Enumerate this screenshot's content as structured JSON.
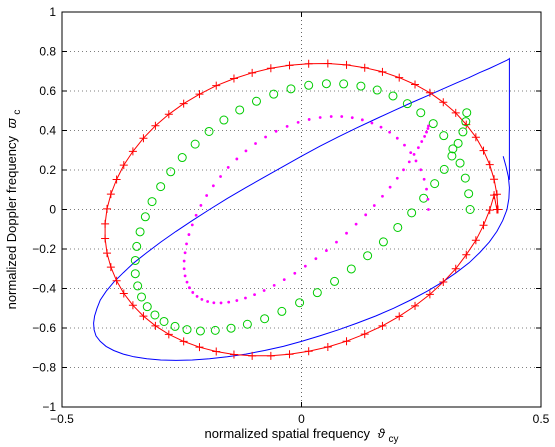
{
  "chart_data": {
    "type": "line",
    "title": "",
    "xlabel": "normalized spatial frequency",
    "xlabel_symbol": "ϑ",
    "xlabel_sub": "cy",
    "ylabel": "normalized Doppler frequency",
    "ylabel_symbol": "ϖ",
    "ylabel_sub": "c",
    "xlim": [
      -0.5,
      0.5
    ],
    "ylim": [
      -1,
      1
    ],
    "grid": true,
    "xticks": [
      -0.5,
      0,
      0.5
    ],
    "xtick_labels": [
      "−0.5",
      "0",
      "0.5"
    ],
    "yticks": [
      -1,
      -0.8,
      -0.6,
      -0.4,
      -0.2,
      0,
      0.2,
      0.4,
      0.6,
      0.8,
      1
    ],
    "ytick_labels": [
      "−1",
      "−0.8",
      "−0.6",
      "−0.4",
      "−0.2",
      "0",
      "0.2",
      "0.4",
      "0.6",
      "0.8",
      "1"
    ],
    "series": [
      {
        "color": "#0000ff",
        "marker": "none",
        "style": "solid",
        "x": [
          0.421,
          0.427,
          0.432,
          0.434,
          0.433,
          0.429,
          0.42,
          0.408,
          0.392,
          0.372,
          0.35,
          0.323,
          0.294,
          0.262,
          0.228,
          0.192,
          0.155,
          0.116,
          0.077,
          0.038,
          0.0,
          -0.038,
          -0.077,
          -0.116,
          -0.155,
          -0.192,
          -0.228,
          -0.262,
          -0.294,
          -0.323,
          -0.35,
          -0.372,
          -0.392,
          -0.408,
          -0.42,
          -0.429,
          -0.433,
          -0.434,
          -0.432,
          -0.427,
          -0.42,
          -0.408,
          -0.392,
          -0.372,
          -0.35,
          -0.323,
          -0.294,
          -0.262,
          -0.228,
          -0.192,
          -0.155,
          -0.116,
          -0.077,
          -0.038,
          0.0,
          0.038,
          0.077,
          0.116,
          0.155,
          0.192,
          0.228,
          0.262,
          0.294,
          0.323,
          0.35,
          0.372,
          0.392,
          0.408,
          0.42,
          0.429,
          0.433,
          0.434,
          0.434
        ],
        "y": [
          0.27,
          0.218,
          0.165,
          0.111,
          0.056,
          0.0,
          -0.056,
          -0.111,
          -0.165,
          -0.218,
          -0.27,
          -0.32,
          -0.368,
          -0.414,
          -0.458,
          -0.5,
          -0.539,
          -0.575,
          -0.609,
          -0.64,
          -0.668,
          -0.693,
          -0.714,
          -0.732,
          -0.746,
          -0.756,
          -0.762,
          -0.764,
          -0.762,
          -0.756,
          -0.746,
          -0.732,
          -0.714,
          -0.693,
          -0.668,
          -0.64,
          -0.609,
          -0.575,
          -0.539,
          -0.5,
          -0.458,
          -0.414,
          -0.368,
          -0.32,
          -0.27,
          -0.218,
          -0.165,
          -0.111,
          -0.056,
          0.0,
          0.056,
          0.111,
          0.165,
          0.218,
          0.27,
          0.32,
          0.368,
          0.414,
          0.458,
          0.5,
          0.539,
          0.575,
          0.609,
          0.64,
          0.668,
          0.693,
          0.714,
          0.732,
          0.746,
          0.756,
          0.762,
          0.764,
          0.15
        ]
      },
      {
        "color": "#ff0000",
        "marker": "plus",
        "style": "solid",
        "x": [
          0.41,
          0.408,
          0.402,
          0.393,
          0.38,
          0.364,
          0.344,
          0.322,
          0.296,
          0.268,
          0.237,
          0.204,
          0.169,
          0.132,
          0.094,
          0.055,
          0.015,
          -0.025,
          -0.064,
          -0.103,
          -0.141,
          -0.178,
          -0.213,
          -0.246,
          -0.277,
          -0.305,
          -0.33,
          -0.352,
          -0.371,
          -0.386,
          -0.398,
          -0.406,
          -0.41,
          -0.41,
          -0.406,
          -0.398,
          -0.386,
          -0.371,
          -0.352,
          -0.33,
          -0.305,
          -0.277,
          -0.246,
          -0.213,
          -0.178,
          -0.141,
          -0.103,
          -0.064,
          -0.025,
          0.015,
          0.055,
          0.094,
          0.132,
          0.169,
          0.204,
          0.237,
          0.268,
          0.296,
          0.322,
          0.344,
          0.364,
          0.38,
          0.393,
          0.402,
          0.408,
          0.41
        ],
        "y": [
          0.0,
          0.077,
          0.153,
          0.227,
          0.298,
          0.366,
          0.43,
          0.489,
          0.543,
          0.591,
          0.633,
          0.668,
          0.697,
          0.718,
          0.732,
          0.739,
          0.738,
          0.73,
          0.715,
          0.692,
          0.663,
          0.627,
          0.584,
          0.536,
          0.482,
          0.424,
          0.361,
          0.294,
          0.225,
          0.152,
          0.078,
          0.003,
          -0.073,
          -0.147,
          -0.221,
          -0.292,
          -0.361,
          -0.425,
          -0.485,
          -0.54,
          -0.589,
          -0.632,
          -0.668,
          -0.697,
          -0.719,
          -0.734,
          -0.741,
          -0.741,
          -0.733,
          -0.718,
          -0.696,
          -0.667,
          -0.631,
          -0.589,
          -0.541,
          -0.488,
          -0.43,
          -0.367,
          -0.3,
          -0.229,
          -0.156,
          -0.08,
          -0.003,
          0.073,
          0.0,
          0.0
        ]
      },
      {
        "color": "#00cc00",
        "marker": "circle",
        "style": "none",
        "x": [
          0.352,
          0.349,
          0.342,
          0.331,
          0.316,
          0.297,
          0.275,
          0.249,
          0.221,
          0.191,
          0.158,
          0.124,
          0.088,
          0.052,
          0.015,
          -0.022,
          -0.058,
          -0.094,
          -0.129,
          -0.162,
          -0.193,
          -0.222,
          -0.249,
          -0.273,
          -0.294,
          -0.312,
          -0.326,
          -0.337,
          -0.344,
          -0.347,
          -0.347,
          -0.342,
          -0.334,
          -0.322,
          -0.306,
          -0.287,
          -0.264,
          -0.239,
          -0.211,
          -0.18,
          -0.147,
          -0.113,
          -0.077,
          -0.041,
          -0.004,
          0.033,
          0.069,
          0.104,
          0.138,
          0.171,
          0.201,
          0.23,
          0.255,
          0.278,
          0.298,
          0.314,
          0.327,
          0.337,
          0.343,
          0.345
        ],
        "y": [
          0.0,
          0.08,
          0.159,
          0.235,
          0.307,
          0.374,
          0.435,
          0.49,
          0.536,
          0.575,
          0.605,
          0.625,
          0.636,
          0.637,
          0.629,
          0.611,
          0.584,
          0.548,
          0.504,
          0.453,
          0.395,
          0.331,
          0.263,
          0.191,
          0.116,
          0.04,
          -0.037,
          -0.113,
          -0.187,
          -0.258,
          -0.325,
          -0.387,
          -0.443,
          -0.492,
          -0.534,
          -0.567,
          -0.592,
          -0.608,
          -0.615,
          -0.612,
          -0.601,
          -0.581,
          -0.553,
          -0.516,
          -0.472,
          -0.421,
          -0.364,
          -0.301,
          -0.234,
          -0.164,
          -0.091,
          -0.017,
          0.057,
          0.131,
          0.203,
          0.271,
          0.335,
          0.393,
          0.445,
          0.49
        ]
      },
      {
        "color": "#ff00ff",
        "marker": "dot",
        "style": "none",
        "x": [
          0.265,
          0.264,
          0.261,
          0.256,
          0.249,
          0.239,
          0.228,
          0.215,
          0.2,
          0.184,
          0.166,
          0.147,
          0.127,
          0.106,
          0.084,
          0.062,
          0.039,
          0.016,
          -0.007,
          -0.03,
          -0.053,
          -0.075,
          -0.096,
          -0.116,
          -0.135,
          -0.153,
          -0.169,
          -0.184,
          -0.198,
          -0.21,
          -0.22,
          -0.228,
          -0.235,
          -0.24,
          -0.243,
          -0.245,
          -0.245,
          -0.243,
          -0.239,
          -0.234,
          -0.227,
          -0.218,
          -0.208,
          -0.196,
          -0.183,
          -0.168,
          -0.152,
          -0.135,
          -0.117,
          -0.098,
          -0.078,
          -0.057,
          -0.036,
          -0.014,
          0.008,
          0.03,
          0.052,
          0.073,
          0.094,
          0.114,
          0.134,
          0.152,
          0.169,
          0.185,
          0.2,
          0.213,
          0.225,
          0.235,
          0.244,
          0.251,
          0.257,
          0.261,
          0.264,
          0.265
        ],
        "y": [
          0.0,
          0.052,
          0.103,
          0.153,
          0.201,
          0.246,
          0.288,
          0.326,
          0.361,
          0.391,
          0.417,
          0.438,
          0.454,
          0.465,
          0.471,
          0.471,
          0.466,
          0.456,
          0.441,
          0.421,
          0.396,
          0.367,
          0.334,
          0.297,
          0.256,
          0.213,
          0.167,
          0.12,
          0.071,
          0.021,
          -0.029,
          -0.078,
          -0.127,
          -0.174,
          -0.219,
          -0.261,
          -0.3,
          -0.336,
          -0.368,
          -0.396,
          -0.42,
          -0.44,
          -0.455,
          -0.466,
          -0.472,
          -0.473,
          -0.469,
          -0.461,
          -0.448,
          -0.431,
          -0.41,
          -0.384,
          -0.355,
          -0.323,
          -0.287,
          -0.249,
          -0.208,
          -0.165,
          -0.12,
          -0.074,
          -0.027,
          0.02,
          0.067,
          0.113,
          0.158,
          0.201,
          0.241,
          0.279,
          0.313,
          0.344,
          0.37,
          0.392,
          0.41,
          0.423
        ]
      }
    ]
  }
}
